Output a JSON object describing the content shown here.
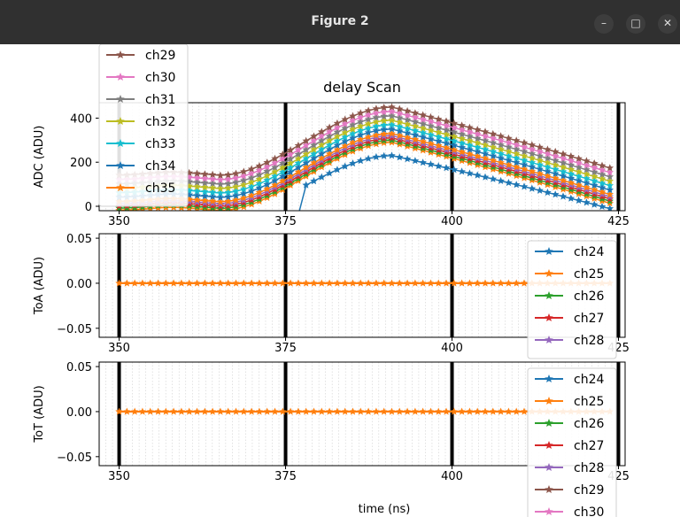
{
  "window": {
    "title": "Figure 2",
    "buttons": {
      "minimize": "–",
      "maximize": "□",
      "close": "✕"
    }
  },
  "colors": {
    "ch24": "#1f77b4",
    "ch25": "#ff7f0e",
    "ch26": "#2ca02c",
    "ch27": "#d62728",
    "ch28": "#9467bd",
    "ch29": "#8c564b",
    "ch30": "#e377c2",
    "ch31": "#7f7f7f",
    "ch32": "#bcbd22",
    "ch33": "#17becf",
    "ch34": "#1f77b4",
    "ch35": "#ff7f0e"
  },
  "chart_data": [
    {
      "type": "line",
      "title": "delay Scan",
      "ylabel": "ADC (ADU)",
      "xlim": [
        347,
        426
      ],
      "ylim": [
        -20,
        470
      ],
      "xticks": [
        "350",
        "375",
        "400",
        "425"
      ],
      "yticks": [
        "0",
        "200",
        "400"
      ],
      "vlines": [
        350,
        375,
        400,
        425
      ],
      "grid": "vertical minor",
      "legend": {
        "placement": "top-left",
        "entries": [
          "ch29",
          "ch30",
          "ch31",
          "ch32",
          "ch33",
          "ch34",
          "ch35"
        ]
      },
      "series_shape": {
        "x_start": 350,
        "x_end": 424,
        "x_step": 1.17,
        "peak_x": 391,
        "channels": [
          {
            "name": "ch24",
            "baseline": -40,
            "peak": 230
          },
          {
            "name": "ch25",
            "baseline": -20,
            "peak": 290
          },
          {
            "name": "ch26",
            "baseline": -10,
            "peak": 300
          },
          {
            "name": "ch27",
            "baseline": 0,
            "peak": 310
          },
          {
            "name": "ch28",
            "baseline": 10,
            "peak": 320
          },
          {
            "name": "ch35",
            "baseline": 20,
            "peak": 330
          },
          {
            "name": "ch34",
            "baseline": 40,
            "peak": 350
          },
          {
            "name": "ch33",
            "baseline": 60,
            "peak": 370
          },
          {
            "name": "ch32",
            "baseline": 80,
            "peak": 390
          },
          {
            "name": "ch31",
            "baseline": 100,
            "peak": 410
          },
          {
            "name": "ch30",
            "baseline": 120,
            "peak": 430
          },
          {
            "name": "ch29",
            "baseline": 140,
            "peak": 450
          }
        ]
      }
    },
    {
      "type": "line",
      "ylabel": "ToA (ADU)",
      "xlim": [
        347,
        426
      ],
      "ylim": [
        -0.06,
        0.055
      ],
      "xticks": [
        "350",
        "375",
        "400",
        "425"
      ],
      "yticks": [
        "0.05",
        "0.00",
        "−0.05"
      ],
      "vlines": [
        350,
        375,
        400,
        425
      ],
      "series": [
        {
          "name": "ch24..ch35",
          "constant": 0.0
        }
      ],
      "legend": {
        "placement": "right",
        "entries": [
          "ch24",
          "ch25",
          "ch26",
          "ch27",
          "ch28"
        ]
      }
    },
    {
      "type": "line",
      "ylabel": "ToT (ADU)",
      "xlabel": "time (ns)",
      "xlim": [
        347,
        426
      ],
      "ylim": [
        -0.06,
        0.055
      ],
      "xticks": [
        "350",
        "375",
        "400",
        "425"
      ],
      "yticks": [
        "0.05",
        "0.00",
        "−0.05"
      ],
      "vlines": [
        350,
        375,
        400,
        425
      ],
      "series": [
        {
          "name": "ch24..ch35",
          "constant": 0.0
        }
      ],
      "legend": {
        "placement": "right",
        "entries": [
          "ch24",
          "ch25",
          "ch26",
          "ch27",
          "ch28",
          "ch29",
          "ch30"
        ]
      }
    }
  ]
}
